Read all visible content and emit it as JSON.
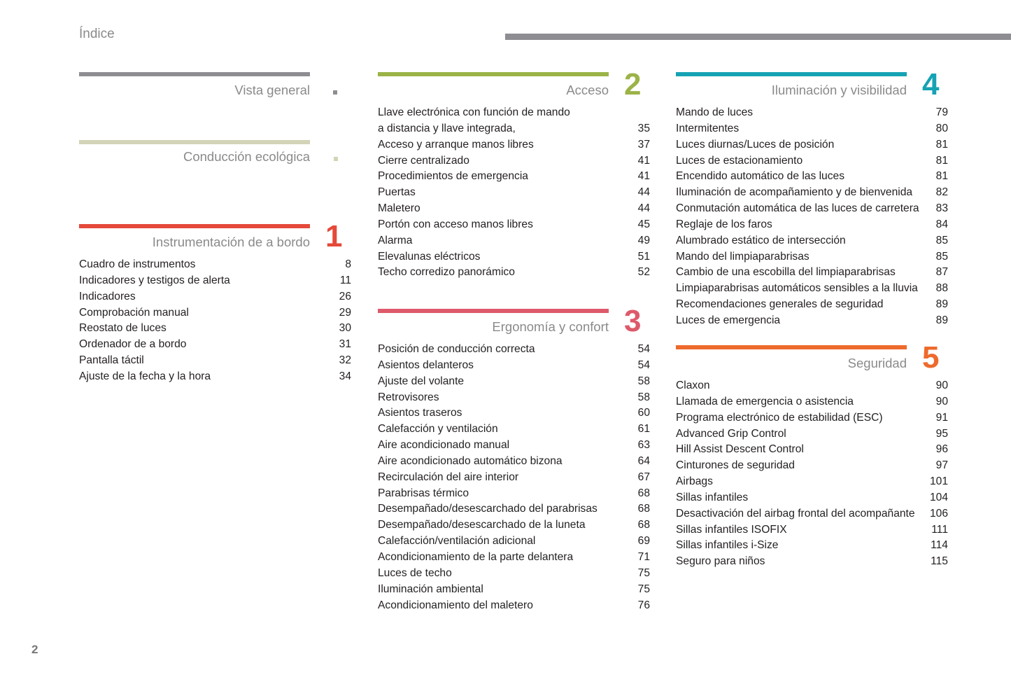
{
  "header": {
    "title": "Índice"
  },
  "page_number": "2",
  "sections": {
    "vista": {
      "title": "Vista general",
      "color": "#8e8d92"
    },
    "eco": {
      "title": "Conducción ecológica",
      "color": "#d3d3b8"
    },
    "instr": {
      "title": "Instrumentación de a bordo",
      "number": "1",
      "color": "#e5493a",
      "items": [
        {
          "text": "Cuadro de instrumentos",
          "page": "8"
        },
        {
          "text": "Indicadores y testigos de alerta",
          "page": "11"
        },
        {
          "text": "Indicadores",
          "page": "26"
        },
        {
          "text": "Comprobación manual",
          "page": "29"
        },
        {
          "text": "Reostato de luces",
          "page": "30"
        },
        {
          "text": "Ordenador de a bordo",
          "page": "31"
        },
        {
          "text": "Pantalla táctil",
          "page": "32"
        },
        {
          "text": "Ajuste de la fecha y la hora",
          "page": "34"
        }
      ]
    },
    "acceso": {
      "title": "Acceso",
      "number": "2",
      "color": "#9bb347",
      "items": [
        {
          "text": "Llave electrónica con función de mando",
          "page": ""
        },
        {
          "text": "a distancia y llave integrada,",
          "page": "35"
        },
        {
          "text": "Acceso y arranque manos libres",
          "page": "37"
        },
        {
          "text": "Cierre centralizado",
          "page": "41"
        },
        {
          "text": "Procedimientos de emergencia",
          "page": "41"
        },
        {
          "text": "Puertas",
          "page": "44"
        },
        {
          "text": "Maletero",
          "page": "44"
        },
        {
          "text": "Portón con acceso manos libres",
          "page": "45"
        },
        {
          "text": "Alarma",
          "page": "49"
        },
        {
          "text": "Elevalunas eléctricos",
          "page": "51"
        },
        {
          "text": "Techo corredizo panorámico",
          "page": "52"
        }
      ]
    },
    "ergo": {
      "title": "Ergonomía y confort",
      "number": "3",
      "color": "#dd5a6a",
      "items": [
        {
          "text": "Posición de conducción correcta",
          "page": "54"
        },
        {
          "text": "Asientos delanteros",
          "page": "54"
        },
        {
          "text": "Ajuste del volante",
          "page": "58"
        },
        {
          "text": "Retrovisores",
          "page": "58"
        },
        {
          "text": "Asientos traseros",
          "page": "60"
        },
        {
          "text": "Calefacción y ventilación",
          "page": "61"
        },
        {
          "text": "Aire acondicionado manual",
          "page": "63"
        },
        {
          "text": "Aire acondicionado automático bizona",
          "page": "64"
        },
        {
          "text": "Recirculación del aire interior",
          "page": "67"
        },
        {
          "text": "Parabrisas térmico",
          "page": "68"
        },
        {
          "text": "Desempañado/desescarchado del parabrisas",
          "page": "68"
        },
        {
          "text": "Desempañado/desescarchado de la luneta",
          "page": "68"
        },
        {
          "text": "Calefacción/ventilación adicional",
          "page": "69"
        },
        {
          "text": "Acondicionamiento de la parte delantera",
          "page": "71"
        },
        {
          "text": "Luces de techo",
          "page": "75"
        },
        {
          "text": "Iluminación ambiental",
          "page": "75"
        },
        {
          "text": "Acondicionamiento del maletero",
          "page": "76"
        }
      ]
    },
    "ilum": {
      "title": "Iluminación y visibilidad",
      "number": "4",
      "color": "#15a3b4",
      "items": [
        {
          "text": "Mando de luces",
          "page": "79"
        },
        {
          "text": "Intermitentes",
          "page": "80"
        },
        {
          "text": "Luces diurnas/Luces de posición",
          "page": "81"
        },
        {
          "text": "Luces de estacionamiento",
          "page": "81"
        },
        {
          "text": "Encendido automático de las luces",
          "page": "81"
        },
        {
          "text": "Iluminación de acompañamiento y de bienvenida",
          "page": "82"
        },
        {
          "text": "Conmutación automática de las luces de carretera",
          "page": "83"
        },
        {
          "text": "Reglaje de los faros",
          "page": "84"
        },
        {
          "text": "Alumbrado estático de intersección",
          "page": "85"
        },
        {
          "text": "Mando del limpiaparabrisas",
          "page": "85"
        },
        {
          "text": "Cambio de una escobilla del limpiaparabrisas",
          "page": "87"
        },
        {
          "text": "Limpiaparabrisas automáticos sensibles a la lluvia",
          "page": "88"
        },
        {
          "text": "Recomendaciones generales de seguridad",
          "page": "89"
        },
        {
          "text": "Luces de emergencia",
          "page": "89"
        }
      ]
    },
    "seg": {
      "title": "Seguridad",
      "number": "5",
      "color": "#ee6a2c",
      "items": [
        {
          "text": "Claxon",
          "page": "90"
        },
        {
          "text": "Llamada de emergencia o asistencia",
          "page": "90"
        },
        {
          "text": "Programa electrónico de estabilidad (ESC)",
          "page": "91"
        },
        {
          "text": "Advanced Grip Control",
          "page": "95"
        },
        {
          "text": "Hill Assist Descent Control",
          "page": "96"
        },
        {
          "text": "Cinturones de seguridad",
          "page": "97"
        },
        {
          "text": "Airbags",
          "page": "101"
        },
        {
          "text": "Sillas infantiles",
          "page": "104"
        },
        {
          "text": "Desactivación del airbag frontal del acompañante",
          "page": "106"
        },
        {
          "text": "Sillas infantiles ISOFIX",
          "page": "111"
        },
        {
          "text": "Sillas infantiles i-Size",
          "page": "114"
        },
        {
          "text": "Seguro para niños",
          "page": "115"
        }
      ]
    }
  }
}
